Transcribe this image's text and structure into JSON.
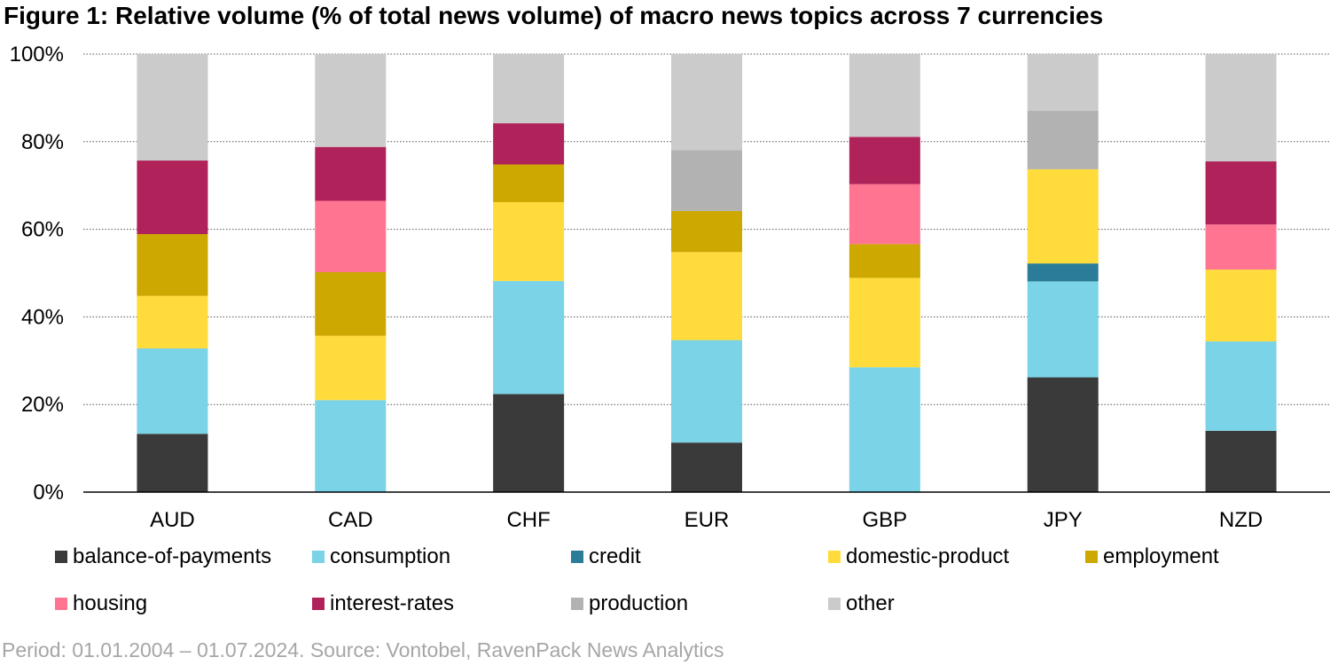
{
  "chart_data": {
    "type": "bar",
    "stacked": true,
    "title": "Figure 1: Relative volume (% of total news volume) of macro news topics across 7 currencies",
    "categories": [
      "AUD",
      "CAD",
      "CHF",
      "EUR",
      "GBP",
      "JPY",
      "NZD"
    ],
    "ylim": [
      0,
      100
    ],
    "yticks": [
      0,
      20,
      40,
      60,
      80,
      100
    ],
    "ytick_labels": [
      "0%",
      "20%",
      "40%",
      "60%",
      "80%",
      "100%"
    ],
    "grid": true,
    "legend_position": "bottom",
    "series": [
      {
        "name": "balance-of-payments",
        "color": "#3a3a3a",
        "values": [
          13.3,
          0,
          22.4,
          11.3,
          0,
          26.2,
          14.0
        ]
      },
      {
        "name": "consumption",
        "color": "#7ad3e6",
        "values": [
          19.5,
          21.0,
          25.8,
          23.4,
          28.5,
          21.9,
          20.4
        ]
      },
      {
        "name": "credit",
        "color": "#2a7c98",
        "values": [
          0,
          0,
          0,
          0,
          0,
          4.1,
          0
        ]
      },
      {
        "name": "domestic-product",
        "color": "#ffdb3b",
        "values": [
          12.0,
          14.7,
          18.0,
          20.1,
          20.4,
          21.5,
          16.4
        ]
      },
      {
        "name": "employment",
        "color": "#cca800",
        "values": [
          14.1,
          14.5,
          8.6,
          9.4,
          7.7,
          0,
          0
        ]
      },
      {
        "name": "housing",
        "color": "#ff7591",
        "values": [
          0,
          16.3,
          0,
          0,
          13.7,
          0,
          10.3
        ]
      },
      {
        "name": "interest-rates",
        "color": "#b0225a",
        "values": [
          16.8,
          12.3,
          9.4,
          0,
          10.8,
          0,
          14.4
        ]
      },
      {
        "name": "production",
        "color": "#b2b2b2",
        "values": [
          0,
          0,
          0,
          13.9,
          0,
          13.4,
          0
        ]
      },
      {
        "name": "other",
        "color": "#cbcbcb",
        "values": [
          24.3,
          21.2,
          15.8,
          21.9,
          18.9,
          12.9,
          24.5
        ]
      }
    ],
    "source_note": "Period: 01.01.2004 – 01.07.2024. Source: Vontobel, RavenPack News Analytics"
  }
}
